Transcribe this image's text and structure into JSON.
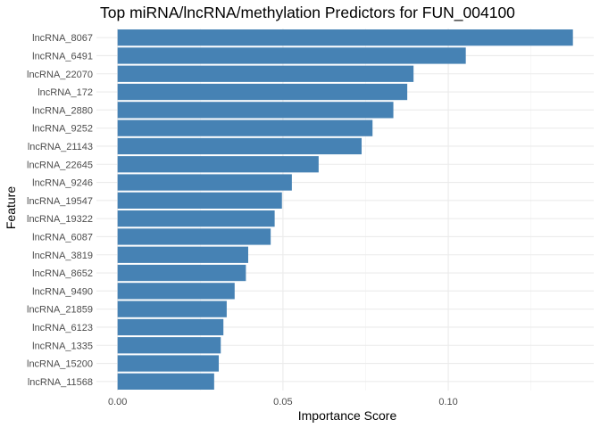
{
  "chart_data": {
    "type": "bar",
    "orientation": "horizontal",
    "title": "Top miRNA/lncRNA/methylation Predictors for FUN_004100",
    "xlabel": "Importance Score",
    "ylabel": "Feature",
    "xlim": [
      -0.0064,
      0.144
    ],
    "x_ticks": [
      "0.00",
      "0.05",
      "0.10"
    ],
    "x_tick_values": [
      0,
      0.05,
      0.1
    ],
    "grid": true,
    "bar_color": "#4682b4",
    "categories": [
      "lncRNA_8067",
      "lncRNA_6491",
      "lncRNA_22070",
      "lncRNA_172",
      "lncRNA_2880",
      "lncRNA_9252",
      "lncRNA_21143",
      "lncRNA_22645",
      "lncRNA_9246",
      "lncRNA_19547",
      "lncRNA_19322",
      "lncRNA_6087",
      "lncRNA_3819",
      "lncRNA_8652",
      "lncRNA_9490",
      "lncRNA_21859",
      "lncRNA_6123",
      "lncRNA_1335",
      "lncRNA_15200",
      "lncRNA_11568"
    ],
    "values": [
      0.1377,
      0.1053,
      0.0895,
      0.0876,
      0.0834,
      0.0771,
      0.0738,
      0.0608,
      0.0527,
      0.0497,
      0.0475,
      0.0463,
      0.0395,
      0.0388,
      0.0354,
      0.033,
      0.032,
      0.0312,
      0.0306,
      0.0292
    ]
  }
}
